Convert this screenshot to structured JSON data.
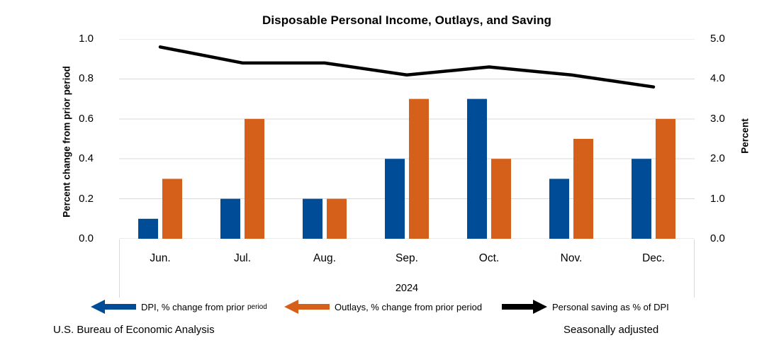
{
  "title": "Disposable Personal Income, Outlays, and Saving",
  "chart_data": {
    "type": "bar",
    "subtype": "grouped bars with overlaid line",
    "categories": [
      "Jun.",
      "Jul.",
      "Aug.",
      "Sep.",
      "Oct.",
      "Nov.",
      "Dec."
    ],
    "x_group_label": "2024",
    "series": [
      {
        "name": "DPI, % change from prior period",
        "kind": "bar",
        "axis": "left",
        "color": "#004C97",
        "values": [
          0.1,
          0.2,
          0.2,
          0.4,
          0.7,
          0.3,
          0.4
        ]
      },
      {
        "name": "Outlays, % change from prior period",
        "kind": "bar",
        "axis": "left",
        "color": "#D5601A",
        "values": [
          0.3,
          0.6,
          0.2,
          0.7,
          0.4,
          0.5,
          0.6
        ]
      },
      {
        "name": "Personal saving as % of DPI",
        "kind": "line",
        "axis": "right",
        "color": "#000000",
        "values": [
          4.8,
          4.4,
          4.4,
          4.1,
          4.3,
          4.1,
          3.8
        ]
      }
    ],
    "left_axis": {
      "label": "Percent change from prior period",
      "min": 0.0,
      "max": 1.0,
      "ticks": [
        "1.0",
        "0.8",
        "0.6",
        "0.4",
        "0.2",
        "0.0"
      ]
    },
    "right_axis": {
      "label": "Percent",
      "min": 0.0,
      "max": 5.0,
      "ticks": [
        "5.0",
        "4.0",
        "3.0",
        "2.0",
        "1.0",
        "0.0"
      ]
    },
    "grid": "horizontal",
    "gridline_color": "#D9D9D9",
    "legend_position": "bottom"
  },
  "legend": {
    "dpi": {
      "label": "DPI, % change from prior",
      "label_small": "period",
      "arrow_direction": "left",
      "color": "#004C97"
    },
    "outlays": {
      "label": "Outlays, % change from prior period",
      "arrow_direction": "left",
      "color": "#D5601A"
    },
    "saving": {
      "label": "Personal saving as % of DPI",
      "arrow_direction": "right",
      "color": "#000000"
    }
  },
  "footer": {
    "source": "U.S. Bureau of Economic Analysis",
    "note": "Seasonally adjusted"
  }
}
